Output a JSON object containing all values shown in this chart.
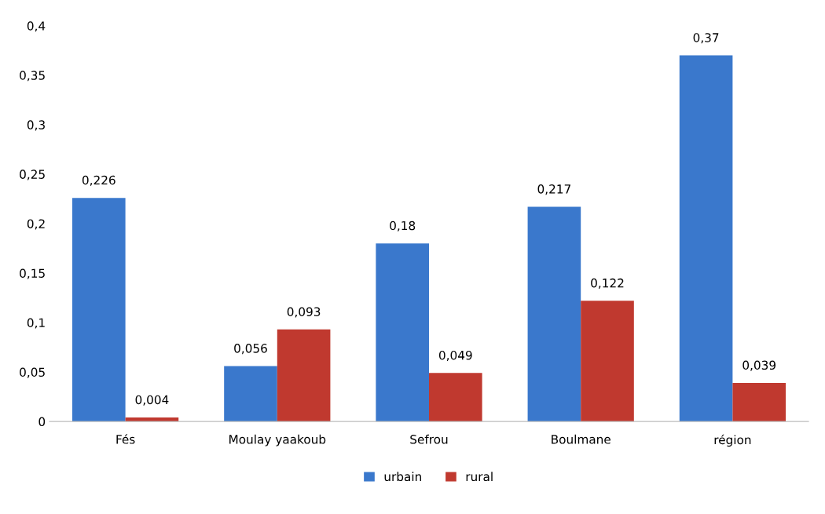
{
  "chart_data": {
    "type": "bar",
    "categories": [
      "Fés",
      "Moulay yaakoub",
      "Sefrou",
      "Boulmane",
      "région"
    ],
    "series": [
      {
        "name": "urbain",
        "color": "#3a78cc",
        "values": [
          0.226,
          0.056,
          0.18,
          0.217,
          0.37
        ],
        "value_labels": [
          "0,226",
          "0,056",
          "0,18",
          "0,217",
          "0,37"
        ]
      },
      {
        "name": "rural",
        "color": "#c0392f",
        "values": [
          0.004,
          0.093,
          0.049,
          0.122,
          0.039
        ],
        "value_labels": [
          "0,004",
          "0,093",
          "0,049",
          "0,122",
          "0,039"
        ]
      }
    ],
    "ylim": [
      0,
      0.4
    ],
    "yticks": [
      0,
      {
        "value": 0.05,
        "label": "0,05"
      },
      {
        "value": 0.1,
        "label": "0,1"
      },
      {
        "value": 0.15,
        "label": "0,15"
      },
      {
        "value": 0.2,
        "label": "0,2"
      },
      {
        "value": 0.25,
        "label": "0,25"
      },
      {
        "value": 0.3,
        "label": "0,3"
      },
      {
        "value": 0.35,
        "label": "0,35"
      },
      {
        "value": 0.4,
        "label": "0,4"
      }
    ],
    "grid": false,
    "legend": "bottom"
  }
}
